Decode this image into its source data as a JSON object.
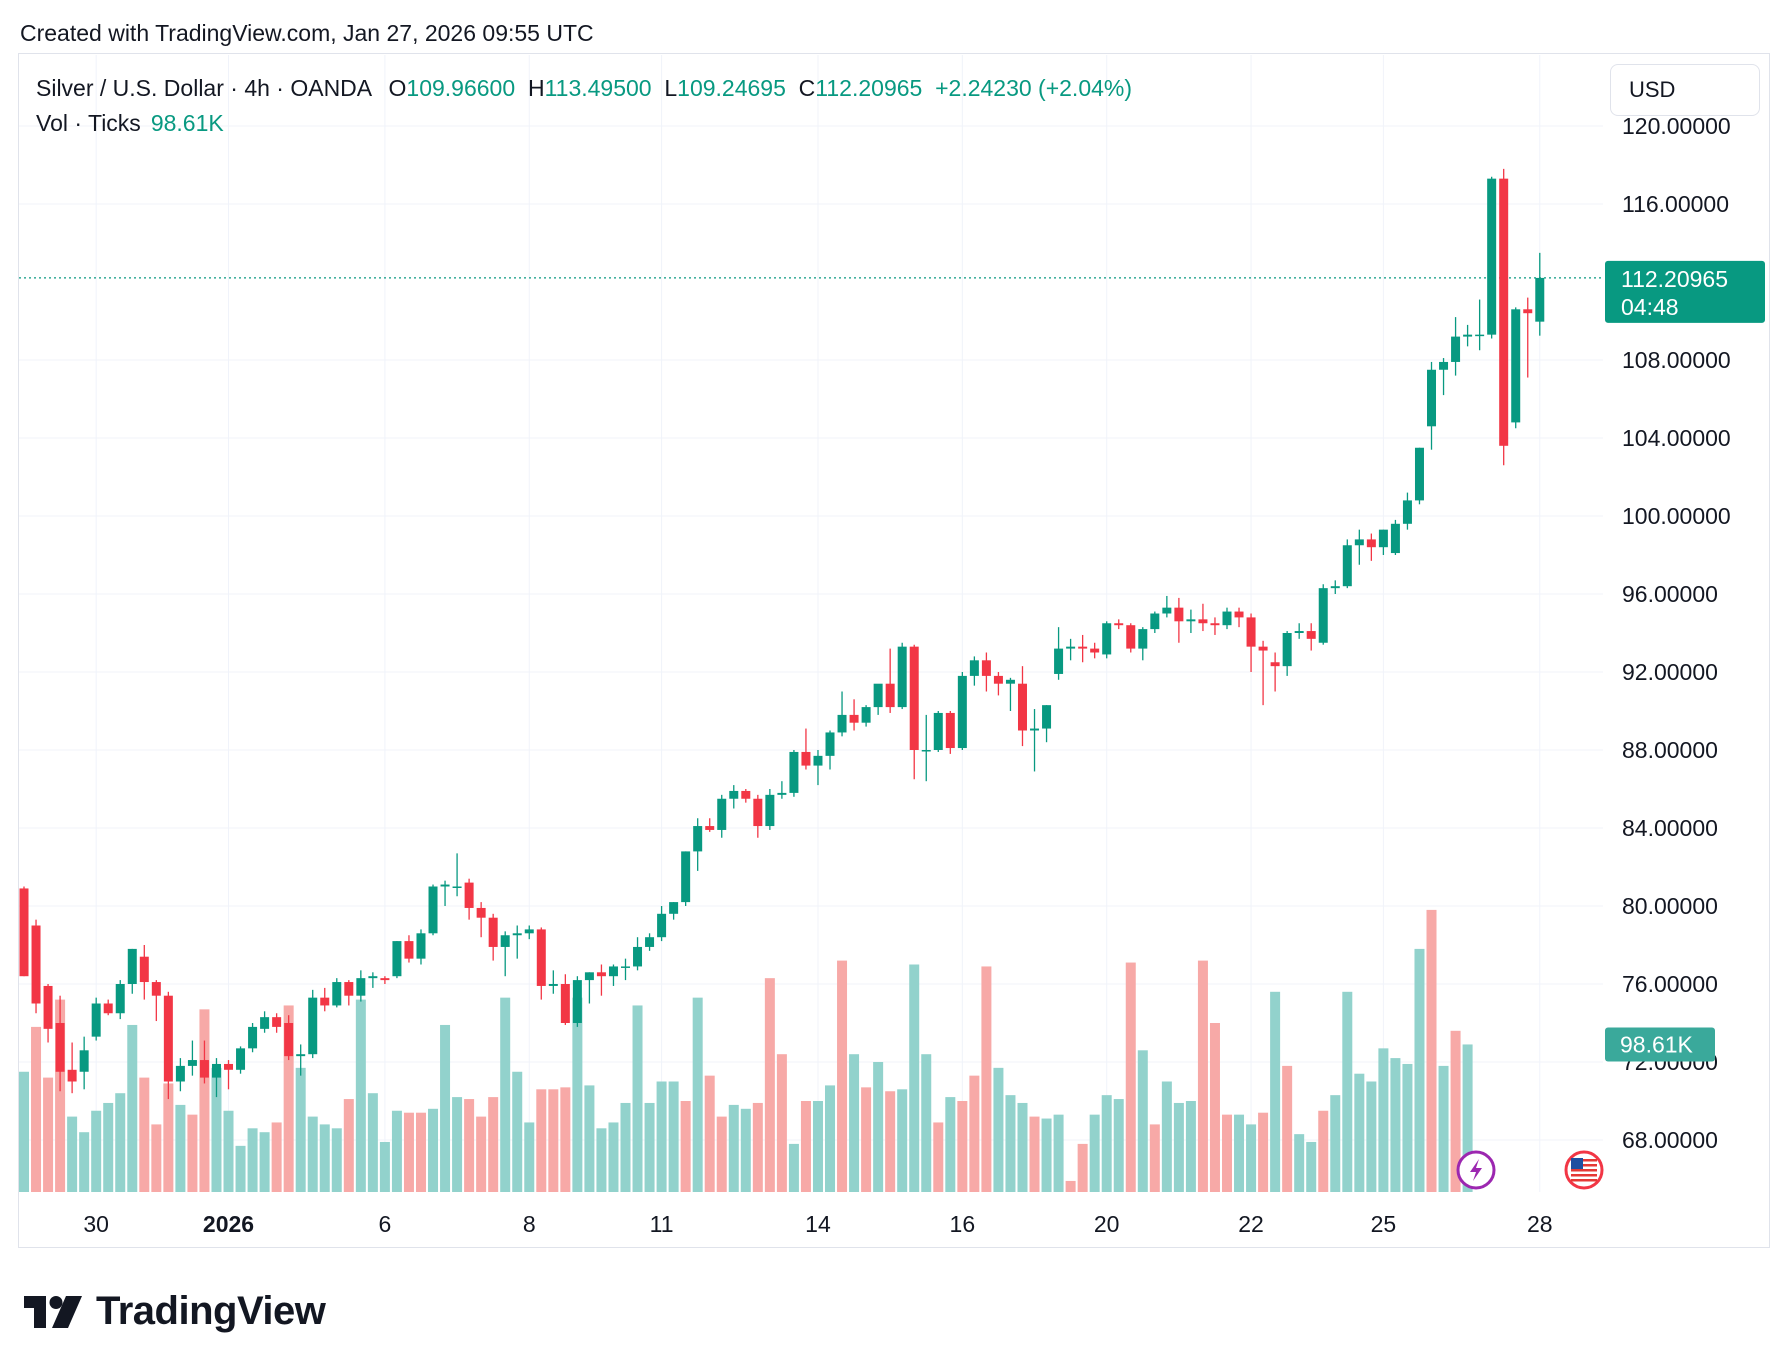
{
  "header": {
    "created": "Created with TradingView.com, Jan 27, 2026 09:55 UTC"
  },
  "legend": {
    "symbol": "Silver / U.S. Dollar · 4h · OANDA",
    "o_label": "O",
    "o_value": "109.96600",
    "h_label": "H",
    "h_value": "113.49500",
    "l_label": "L",
    "l_value": "109.24695",
    "c_label": "C",
    "c_value": "112.20965",
    "change": "+2.24230 (+2.04%)",
    "vol_label": "Vol · Ticks",
    "vol_value": "98.61K"
  },
  "currency_button": "USD",
  "price_badge": {
    "price": "112.20965",
    "countdown": "04:48"
  },
  "volume_badge": "98.61K",
  "brand": "TradingView",
  "colors": {
    "up": "#089981",
    "down": "#f23645",
    "up_vol": "#92d2cc",
    "down_vol": "#f7a9a7",
    "grid": "#f0f3fa"
  },
  "chart_data": {
    "type": "candlestick",
    "title": "Silver / U.S. Dollar · 4h · OANDA",
    "ylim": [
      65.5,
      121.5
    ],
    "y_ticks": [
      "120.00000",
      "116.00000",
      "108.00000",
      "104.00000",
      "100.00000",
      "96.00000",
      "92.00000",
      "88.00000",
      "84.00000",
      "80.00000",
      "76.00000",
      "72.00000",
      "68.00000"
    ],
    "y_tick_values": [
      120,
      116,
      108,
      104,
      100,
      96,
      92,
      88,
      84,
      80,
      76,
      72,
      68
    ],
    "x_ticks": [
      {
        "label": "30",
        "bar": 6
      },
      {
        "label": "2026",
        "bar": 17,
        "bold": true
      },
      {
        "label": "6",
        "bar": 30
      },
      {
        "label": "8",
        "bar": 42
      },
      {
        "label": "11",
        "bar": 53
      },
      {
        "label": "14",
        "bar": 66
      },
      {
        "label": "16",
        "bar": 78
      },
      {
        "label": "20",
        "bar": 90
      },
      {
        "label": "22",
        "bar": 102
      },
      {
        "label": "25",
        "bar": 113
      },
      {
        "label": "28",
        "bar": 126
      }
    ],
    "last_price": 112.20965,
    "candles": [
      [
        80.9,
        81.0,
        76.4,
        76.4
      ],
      [
        79.0,
        79.3,
        74.5,
        75.0
      ],
      [
        75.9,
        76.0,
        73.0,
        73.7
      ],
      [
        74.0,
        75.4,
        70.5,
        71.5
      ],
      [
        71.6,
        73.0,
        70.4,
        71.0
      ],
      [
        71.5,
        73.3,
        70.6,
        72.6
      ],
      [
        73.3,
        75.3,
        73.1,
        75.0
      ],
      [
        75.0,
        75.2,
        74.4,
        74.5
      ],
      [
        74.5,
        76.2,
        74.2,
        76.0
      ],
      [
        76.0,
        77.8,
        75.5,
        77.8
      ],
      [
        77.4,
        78.0,
        75.2,
        76.1
      ],
      [
        76.1,
        76.2,
        74.1,
        75.4
      ],
      [
        75.4,
        75.6,
        70.1,
        71.0
      ],
      [
        71.0,
        72.2,
        70.5,
        71.8
      ],
      [
        71.8,
        73.1,
        71.3,
        72.1
      ],
      [
        72.1,
        73.1,
        70.9,
        71.2
      ],
      [
        71.2,
        72.2,
        70.2,
        71.9
      ],
      [
        71.9,
        72.1,
        70.6,
        71.6
      ],
      [
        71.6,
        72.8,
        71.4,
        72.7
      ],
      [
        72.7,
        74.0,
        72.5,
        73.8
      ],
      [
        73.7,
        74.6,
        73.5,
        74.3
      ],
      [
        74.3,
        74.5,
        73.5,
        73.8
      ],
      [
        74.0,
        74.4,
        72.1,
        72.3
      ],
      [
        72.3,
        72.9,
        71.3,
        72.4
      ],
      [
        72.4,
        75.7,
        72.2,
        75.3
      ],
      [
        75.3,
        75.8,
        74.6,
        74.9
      ],
      [
        74.9,
        76.3,
        74.8,
        76.1
      ],
      [
        76.1,
        76.2,
        74.9,
        75.4
      ],
      [
        75.4,
        76.7,
        75.1,
        76.3
      ],
      [
        76.3,
        76.6,
        75.8,
        76.4
      ],
      [
        76.3,
        76.4,
        76.0,
        76.2
      ],
      [
        76.4,
        78.2,
        76.3,
        78.2
      ],
      [
        78.2,
        78.5,
        77.1,
        77.3
      ],
      [
        77.3,
        78.8,
        77.0,
        78.6
      ],
      [
        78.6,
        81.1,
        78.5,
        81.0
      ],
      [
        81.0,
        81.3,
        80.0,
        81.1
      ],
      [
        81.0,
        82.7,
        80.5,
        81.0
      ],
      [
        81.2,
        81.4,
        79.3,
        79.9
      ],
      [
        79.9,
        80.2,
        78.4,
        79.4
      ],
      [
        79.4,
        79.6,
        77.2,
        77.9
      ],
      [
        77.9,
        78.7,
        76.4,
        78.5
      ],
      [
        78.5,
        79.0,
        77.3,
        78.6
      ],
      [
        78.6,
        79.0,
        78.3,
        78.8
      ],
      [
        78.8,
        78.9,
        75.2,
        75.9
      ],
      [
        75.9,
        76.7,
        75.5,
        76.0
      ],
      [
        76.0,
        76.5,
        73.9,
        74.0
      ],
      [
        74.0,
        76.4,
        73.8,
        76.2
      ],
      [
        76.2,
        76.6,
        75.0,
        76.6
      ],
      [
        76.6,
        77.0,
        75.4,
        76.4
      ],
      [
        76.4,
        77.0,
        75.9,
        76.9
      ],
      [
        76.9,
        77.3,
        76.2,
        76.9
      ],
      [
        76.9,
        78.4,
        76.7,
        77.9
      ],
      [
        77.9,
        78.6,
        77.7,
        78.4
      ],
      [
        78.4,
        80.0,
        78.2,
        79.6
      ],
      [
        79.6,
        80.2,
        79.3,
        80.2
      ],
      [
        80.2,
        82.8,
        80.0,
        82.8
      ],
      [
        82.8,
        84.5,
        81.8,
        84.1
      ],
      [
        84.1,
        84.5,
        83.8,
        83.9
      ],
      [
        83.9,
        85.7,
        83.5,
        85.5
      ],
      [
        85.5,
        86.2,
        85.0,
        85.9
      ],
      [
        85.9,
        86.0,
        85.3,
        85.5
      ],
      [
        85.5,
        85.7,
        83.5,
        84.1
      ],
      [
        84.1,
        86.0,
        83.9,
        85.7
      ],
      [
        85.7,
        86.4,
        85.5,
        85.8
      ],
      [
        85.8,
        88.0,
        85.6,
        87.9
      ],
      [
        87.9,
        89.1,
        87.0,
        87.2
      ],
      [
        87.2,
        88.0,
        86.2,
        87.7
      ],
      [
        87.7,
        89.0,
        87.0,
        88.9
      ],
      [
        88.9,
        91.0,
        88.7,
        89.8
      ],
      [
        89.8,
        90.6,
        89.0,
        89.4
      ],
      [
        89.4,
        90.3,
        89.2,
        90.2
      ],
      [
        90.2,
        91.3,
        89.8,
        91.4
      ],
      [
        91.4,
        93.2,
        89.9,
        90.2
      ],
      [
        90.2,
        93.5,
        90.1,
        93.3
      ],
      [
        93.3,
        93.4,
        86.5,
        88.0
      ],
      [
        88.0,
        89.8,
        86.4,
        88.0
      ],
      [
        88.0,
        90.0,
        87.9,
        89.9
      ],
      [
        89.9,
        90.0,
        87.8,
        88.1
      ],
      [
        88.1,
        92.0,
        88.0,
        91.8
      ],
      [
        91.8,
        92.8,
        91.3,
        92.6
      ],
      [
        92.6,
        93.0,
        91.0,
        91.8
      ],
      [
        91.8,
        92.0,
        90.8,
        91.4
      ],
      [
        91.4,
        91.7,
        90.0,
        91.6
      ],
      [
        91.4,
        92.3,
        88.2,
        89.0
      ],
      [
        89.0,
        90.1,
        86.9,
        89.1
      ],
      [
        89.1,
        90.3,
        88.4,
        90.3
      ],
      [
        91.9,
        94.3,
        91.6,
        93.2
      ],
      [
        93.2,
        93.7,
        92.6,
        93.3
      ],
      [
        93.3,
        93.9,
        92.5,
        93.2
      ],
      [
        93.2,
        93.5,
        92.7,
        93.0
      ],
      [
        92.9,
        94.6,
        92.7,
        94.5
      ],
      [
        94.5,
        94.7,
        94.2,
        94.4
      ],
      [
        94.4,
        94.5,
        93.0,
        93.2
      ],
      [
        93.2,
        94.3,
        92.6,
        94.2
      ],
      [
        94.2,
        95.1,
        94.0,
        95.0
      ],
      [
        95.0,
        95.9,
        94.8,
        95.3
      ],
      [
        95.3,
        95.8,
        93.5,
        94.6
      ],
      [
        94.6,
        95.2,
        94.0,
        94.7
      ],
      [
        94.7,
        95.5,
        94.1,
        94.5
      ],
      [
        94.5,
        94.8,
        93.9,
        94.4
      ],
      [
        94.4,
        95.3,
        94.2,
        95.1
      ],
      [
        95.1,
        95.3,
        94.3,
        94.8
      ],
      [
        94.8,
        95.0,
        92.0,
        93.3
      ],
      [
        93.3,
        93.6,
        90.3,
        93.1
      ],
      [
        92.5,
        93.0,
        91.0,
        92.3
      ],
      [
        92.3,
        94.1,
        91.8,
        94.0
      ],
      [
        94.0,
        94.5,
        93.7,
        94.1
      ],
      [
        94.1,
        94.5,
        93.1,
        93.7
      ],
      [
        93.5,
        96.5,
        93.4,
        96.3
      ],
      [
        96.3,
        96.7,
        96.0,
        96.4
      ],
      [
        96.4,
        98.8,
        96.3,
        98.5
      ],
      [
        98.5,
        99.3,
        97.5,
        98.8
      ],
      [
        98.8,
        99.1,
        97.7,
        98.4
      ],
      [
        98.4,
        99.3,
        98.0,
        99.3
      ],
      [
        98.1,
        99.8,
        98.0,
        99.6
      ],
      [
        99.6,
        101.2,
        99.3,
        100.8
      ],
      [
        100.8,
        103.5,
        100.6,
        103.5
      ],
      [
        104.6,
        107.9,
        103.4,
        107.5
      ],
      [
        107.5,
        108.1,
        106.2,
        107.9
      ],
      [
        107.9,
        110.2,
        107.2,
        109.2
      ],
      [
        109.2,
        109.8,
        108.7,
        109.3
      ],
      [
        109.3,
        111.1,
        108.5,
        109.3
      ],
      [
        109.3,
        117.4,
        109.1,
        117.3
      ],
      [
        117.3,
        117.8,
        102.6,
        103.6
      ],
      [
        104.8,
        110.7,
        104.5,
        110.6
      ],
      [
        110.6,
        111.2,
        107.1,
        110.4
      ],
      [
        109.966,
        113.495,
        109.24695,
        112.20965
      ]
    ],
    "volumes": [
      [
        71.5,
        1
      ],
      [
        73.8,
        0
      ],
      [
        71.2,
        0
      ],
      [
        75.2,
        0
      ],
      [
        69.2,
        1
      ],
      [
        68.4,
        1
      ],
      [
        69.5,
        1
      ],
      [
        69.9,
        1
      ],
      [
        70.4,
        1
      ],
      [
        73.9,
        1
      ],
      [
        71.2,
        0
      ],
      [
        68.8,
        0
      ],
      [
        70.9,
        0
      ],
      [
        69.8,
        1
      ],
      [
        69.3,
        0
      ],
      [
        74.7,
        0
      ],
      [
        71.7,
        1
      ],
      [
        69.5,
        1
      ],
      [
        67.7,
        1
      ],
      [
        68.6,
        1
      ],
      [
        68.4,
        1
      ],
      [
        68.9,
        0
      ],
      [
        74.9,
        0
      ],
      [
        71.7,
        1
      ],
      [
        69.2,
        1
      ],
      [
        68.8,
        1
      ],
      [
        68.6,
        1
      ],
      [
        70.1,
        0
      ],
      [
        75.2,
        1
      ],
      [
        70.4,
        1
      ],
      [
        67.9,
        1
      ],
      [
        69.5,
        1
      ],
      [
        69.4,
        0
      ],
      [
        69.4,
        0
      ],
      [
        69.6,
        1
      ],
      [
        73.9,
        1
      ],
      [
        70.2,
        1
      ],
      [
        70.1,
        0
      ],
      [
        69.2,
        0
      ],
      [
        70.2,
        0
      ],
      [
        75.3,
        1
      ],
      [
        71.5,
        1
      ],
      [
        68.9,
        1
      ],
      [
        70.6,
        0
      ],
      [
        70.6,
        0
      ],
      [
        70.7,
        0
      ],
      [
        75.3,
        1
      ],
      [
        70.8,
        1
      ],
      [
        68.6,
        1
      ],
      [
        68.9,
        1
      ],
      [
        69.9,
        1
      ],
      [
        74.9,
        1
      ],
      [
        69.9,
        1
      ],
      [
        71.0,
        1
      ],
      [
        71.0,
        1
      ],
      [
        70.0,
        0
      ],
      [
        75.3,
        1
      ],
      [
        71.3,
        0
      ],
      [
        69.2,
        0
      ],
      [
        69.8,
        1
      ],
      [
        69.6,
        1
      ],
      [
        69.9,
        0
      ],
      [
        76.3,
        0
      ],
      [
        72.4,
        0
      ],
      [
        67.8,
        1
      ],
      [
        70.0,
        0
      ],
      [
        70.0,
        1
      ],
      [
        70.8,
        1
      ],
      [
        77.2,
        0
      ],
      [
        72.4,
        1
      ],
      [
        70.7,
        0
      ],
      [
        72.0,
        1
      ],
      [
        70.5,
        0
      ],
      [
        70.6,
        1
      ],
      [
        77.0,
        1
      ],
      [
        72.4,
        1
      ],
      [
        68.9,
        0
      ],
      [
        70.2,
        1
      ],
      [
        70.0,
        0
      ],
      [
        71.3,
        0
      ],
      [
        76.9,
        0
      ],
      [
        71.7,
        1
      ],
      [
        70.3,
        1
      ],
      [
        69.9,
        1
      ],
      [
        69.2,
        0
      ],
      [
        69.1,
        1
      ],
      [
        69.3,
        1
      ],
      [
        65.9,
        0
      ],
      [
        67.8,
        0
      ],
      [
        69.3,
        1
      ],
      [
        70.3,
        1
      ],
      [
        70.1,
        1
      ],
      [
        77.1,
        0
      ],
      [
        72.6,
        1
      ],
      [
        68.8,
        0
      ],
      [
        71.0,
        1
      ],
      [
        69.9,
        1
      ],
      [
        70.0,
        1
      ],
      [
        77.2,
        0
      ],
      [
        74.0,
        0
      ],
      [
        69.3,
        0
      ],
      [
        69.3,
        1
      ],
      [
        68.8,
        1
      ],
      [
        69.4,
        0
      ],
      [
        75.6,
        1
      ],
      [
        71.8,
        0
      ],
      [
        68.3,
        1
      ],
      [
        67.9,
        1
      ],
      [
        69.5,
        0
      ],
      [
        70.3,
        1
      ],
      [
        75.6,
        1
      ],
      [
        71.4,
        1
      ],
      [
        71.0,
        1
      ],
      [
        72.7,
        1
      ],
      [
        72.2,
        1
      ],
      [
        71.9,
        1
      ],
      [
        77.8,
        1
      ],
      [
        79.8,
        0
      ],
      [
        71.8,
        1
      ],
      [
        73.6,
        0
      ],
      [
        72.9,
        1
      ]
    ]
  }
}
